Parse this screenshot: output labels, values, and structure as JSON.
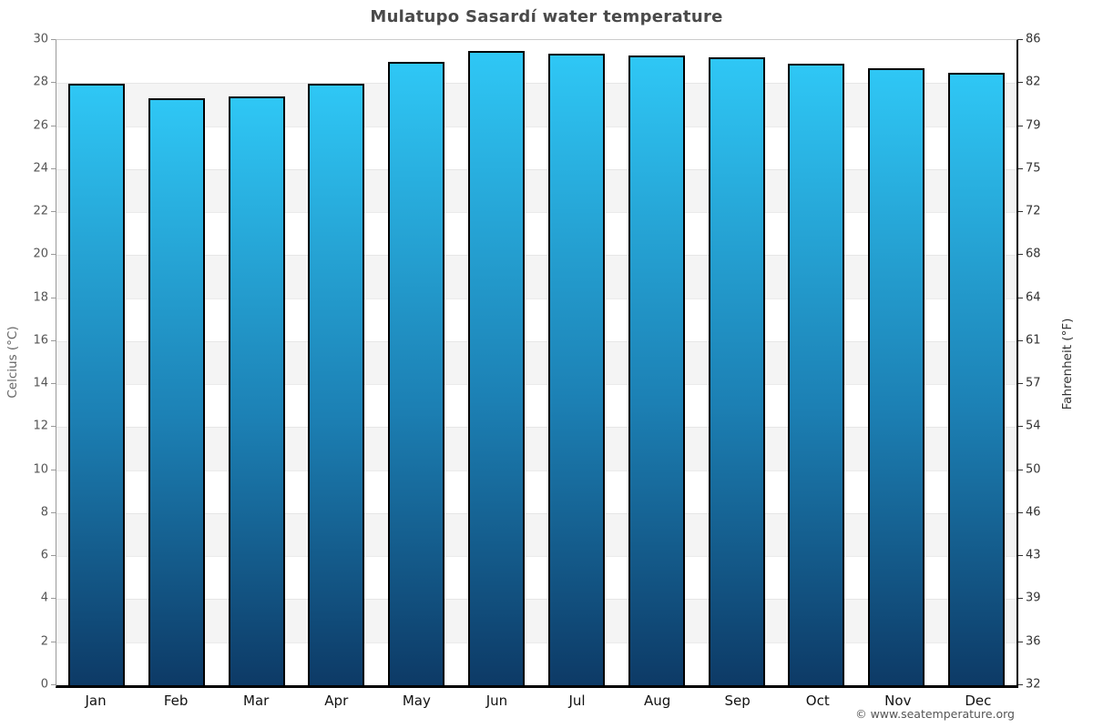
{
  "page": {
    "title": "Mulatupo Sasardí water temperature",
    "footer": "© www.seatemperature.org"
  },
  "chart_data": {
    "type": "bar",
    "title": "Mulatupo Sasardí water temperature",
    "categories": [
      "Jan",
      "Feb",
      "Mar",
      "Apr",
      "May",
      "Jun",
      "Jul",
      "Aug",
      "Sep",
      "Oct",
      "Nov",
      "Dec"
    ],
    "values": [
      27.9,
      27.2,
      27.3,
      27.9,
      28.9,
      29.4,
      29.3,
      29.2,
      29.1,
      28.8,
      28.6,
      28.4
    ],
    "series_name": "Water temperature (°C)",
    "xlabel": "",
    "ylabel_left": "Celcius (°C)",
    "ylabel_right": "Fahrenheit (°F)",
    "ylim_celsius": [
      0,
      30
    ],
    "yticks_celsius": [
      30,
      28,
      26,
      24,
      22,
      20,
      18,
      16,
      14,
      12,
      10,
      8,
      6,
      4,
      2,
      0
    ],
    "yticks_fahrenheit": [
      86,
      82,
      79,
      75,
      72,
      68,
      64,
      61,
      57,
      54,
      50,
      46,
      43,
      39,
      36,
      32
    ],
    "grid": "horizontal gridlines every 2°C with alternating white/gray bands",
    "legend_position": "none",
    "colors": {
      "bar_gradient_top": "#2fc7f5",
      "bar_gradient_bottom": "#0d3a66",
      "bar_border": "#000000",
      "band_gray": "#f4f4f4",
      "gridline": "#e6e6e6",
      "axis_left": "#999999",
      "axis_bottom": "#000000",
      "title_color": "#4a4a4a",
      "tick_color": "#555555"
    }
  }
}
